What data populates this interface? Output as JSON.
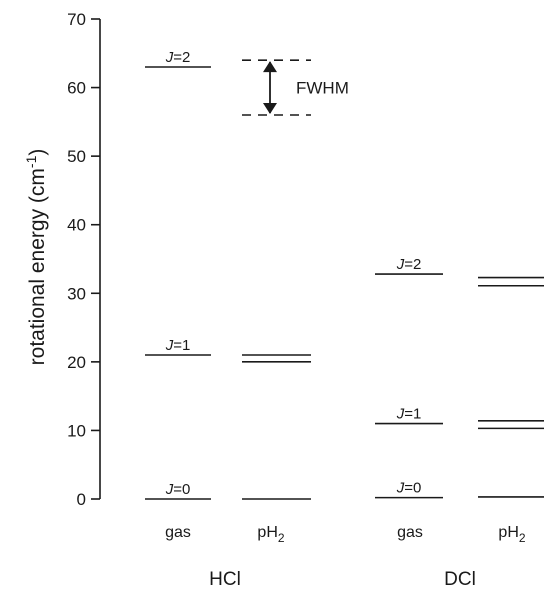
{
  "chart_data": {
    "type": "energy-level diagram",
    "ylabel": "rotational energy (cm",
    "ylabel_sup": "-1",
    "ylabel_end": ")",
    "ylim": [
      0,
      70
    ],
    "yticks": [
      0,
      10,
      20,
      30,
      40,
      50,
      60,
      70
    ],
    "groups": [
      {
        "name": "HCl",
        "columns": [
          {
            "label": "gas",
            "levels": [
              {
                "J_prefix": "J",
                "J_suffix": "=0",
                "energy": 0
              },
              {
                "J_prefix": "J",
                "J_suffix": "=1",
                "energy": 21
              },
              {
                "J_prefix": "J",
                "J_suffix": "=2",
                "energy": 63
              }
            ]
          },
          {
            "label": "pH",
            "label_sub": "2",
            "lines": [
              {
                "energy": 0,
                "style": "solid"
              },
              {
                "energy": 20,
                "style": "solid"
              },
              {
                "energy": 21,
                "style": "solid"
              },
              {
                "energy": 56,
                "style": "dashed"
              },
              {
                "energy": 64,
                "style": "dashed"
              }
            ]
          }
        ]
      },
      {
        "name": "DCl",
        "columns": [
          {
            "label": "gas",
            "levels": [
              {
                "J_prefix": "J",
                "J_suffix": "=0",
                "energy": 0.2
              },
              {
                "J_prefix": "J",
                "J_suffix": "=1",
                "energy": 11
              },
              {
                "J_prefix": "J",
                "J_suffix": "=2",
                "energy": 32.8
              }
            ]
          },
          {
            "label": "pH",
            "label_sub": "2",
            "lines": [
              {
                "energy": 0.3,
                "style": "solid"
              },
              {
                "energy": 10.3,
                "style": "solid"
              },
              {
                "energy": 11.4,
                "style": "solid"
              },
              {
                "energy": 31.1,
                "style": "solid"
              },
              {
                "energy": 32.3,
                "style": "solid"
              }
            ]
          }
        ]
      }
    ],
    "annotations": [
      {
        "text": "FWHM",
        "type": "double-arrow",
        "between": [
          56,
          64
        ]
      }
    ]
  }
}
